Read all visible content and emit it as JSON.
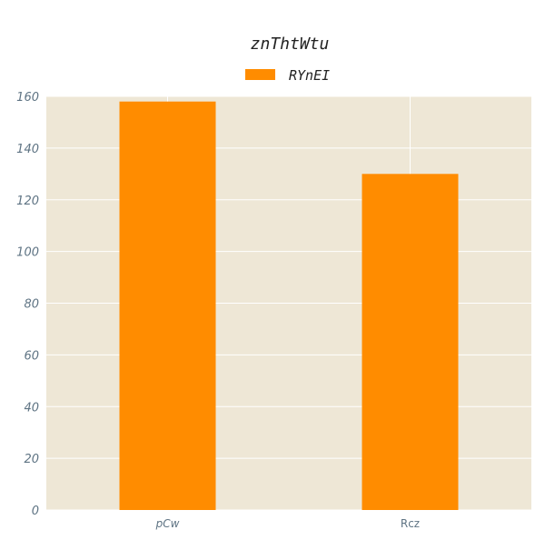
{
  "chart_data": {
    "type": "bar",
    "title": "znThtWtu",
    "xlabel": "",
    "ylabel": "",
    "categories": [
      "pCw",
      "Rcz"
    ],
    "series": [
      {
        "name": "RYnEI",
        "values": [
          158,
          130
        ]
      }
    ],
    "ylim": [
      0,
      160
    ],
    "yticks": [
      0,
      20,
      40,
      60,
      80,
      100,
      120,
      140,
      160
    ],
    "grid": true,
    "legend_position": "top-center",
    "colors": {
      "bar": "#ff8c00",
      "plot_background": "#eee7d6",
      "grid": "#ffffff",
      "tick_text": "#5f7484",
      "title_text": "#222222"
    }
  }
}
